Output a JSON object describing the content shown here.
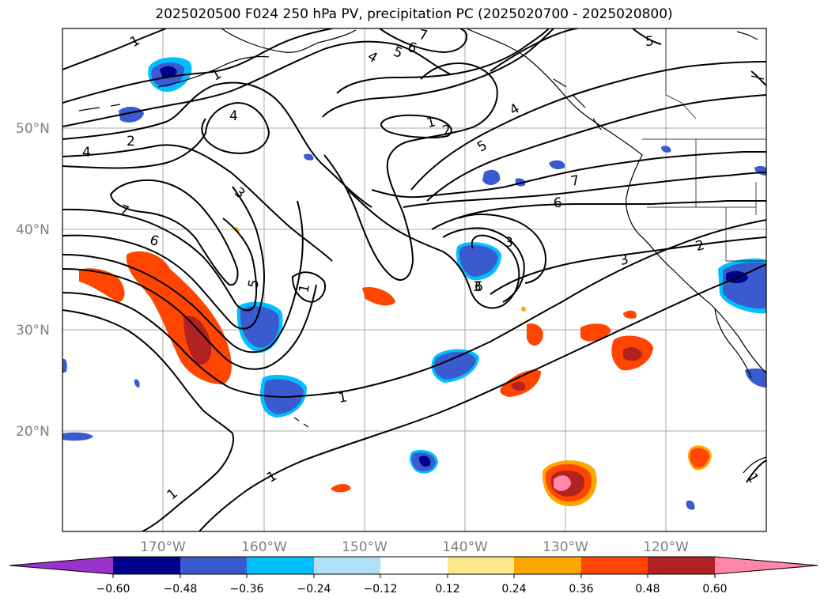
{
  "title": "2025020500 F024 250 hPa PV, precipitation PC (2025020700 - 2025020800)",
  "lat_labels": [
    "50°N",
    "40°N",
    "30°N",
    "20°N"
  ],
  "lon_labels": [
    "170°W",
    "160°W",
    "150°W",
    "140°W",
    "130°W",
    "120°W"
  ],
  "colorbar": {
    "ticks": [
      "−0.60",
      "−0.48",
      "−0.36",
      "−0.24",
      "−0.12",
      "0.12",
      "0.24",
      "0.36",
      "0.48",
      "0.60"
    ],
    "colors": [
      "#9933cc",
      "#00008b",
      "#3a5bd0",
      "#00bfff",
      "#b0e0f8",
      "#ffffff",
      "#fde98c",
      "#ffa500",
      "#ff4500",
      "#b22222",
      "#ff88aa"
    ]
  },
  "contour_labels": [
    "1",
    "1",
    "1",
    "1",
    "1",
    "1",
    "1",
    "1",
    "2",
    "2",
    "2",
    "3",
    "3",
    "3",
    "3",
    "4",
    "4",
    "4",
    "4",
    "5",
    "5",
    "5",
    "5",
    "6",
    "6",
    "6",
    "6",
    "7",
    "7",
    "7"
  ]
}
